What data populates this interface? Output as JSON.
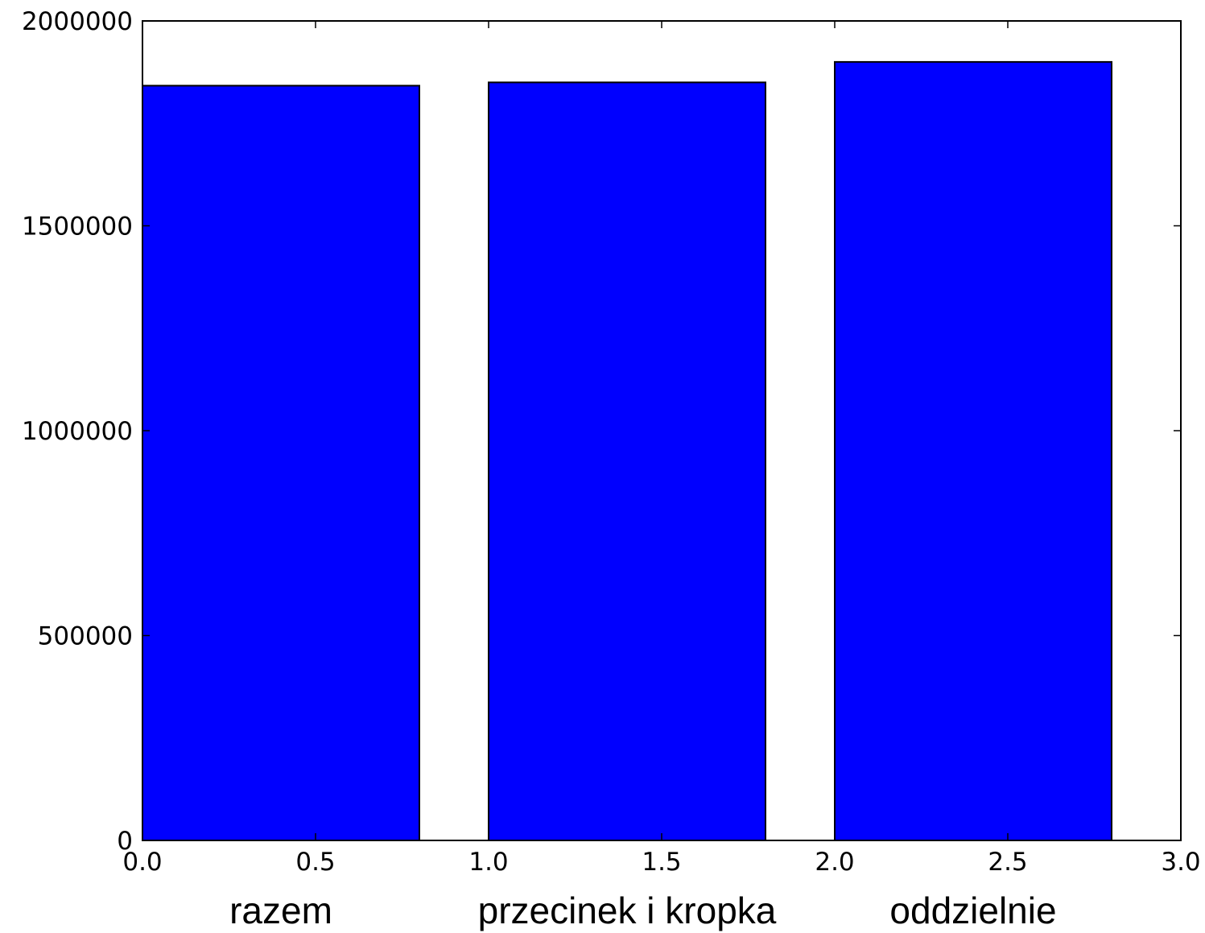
{
  "chart_data": {
    "type": "bar",
    "categories": [
      "razem",
      "przecinek i kropka",
      "oddzielnie"
    ],
    "values": [
      1842000,
      1850000,
      1900000
    ],
    "bar_start": [
      0.0,
      1.0,
      2.0
    ],
    "bar_width": 0.8,
    "xlim": [
      0.0,
      3.0
    ],
    "ylim": [
      0,
      2000000
    ],
    "xticks": [
      0.0,
      0.5,
      1.0,
      1.5,
      2.0,
      2.5,
      3.0
    ],
    "xtick_labels": [
      "0.0",
      "0.5",
      "1.0",
      "1.5",
      "2.0",
      "2.5",
      "3.0"
    ],
    "yticks": [
      0,
      500000,
      1000000,
      1500000,
      2000000
    ],
    "ytick_labels": [
      "0",
      "500000",
      "1000000",
      "1500000",
      "2000000"
    ],
    "grid": false,
    "title": "",
    "xlabel": "",
    "ylabel": "",
    "bar_color": "#0000ff",
    "edge_color": "#000000"
  }
}
